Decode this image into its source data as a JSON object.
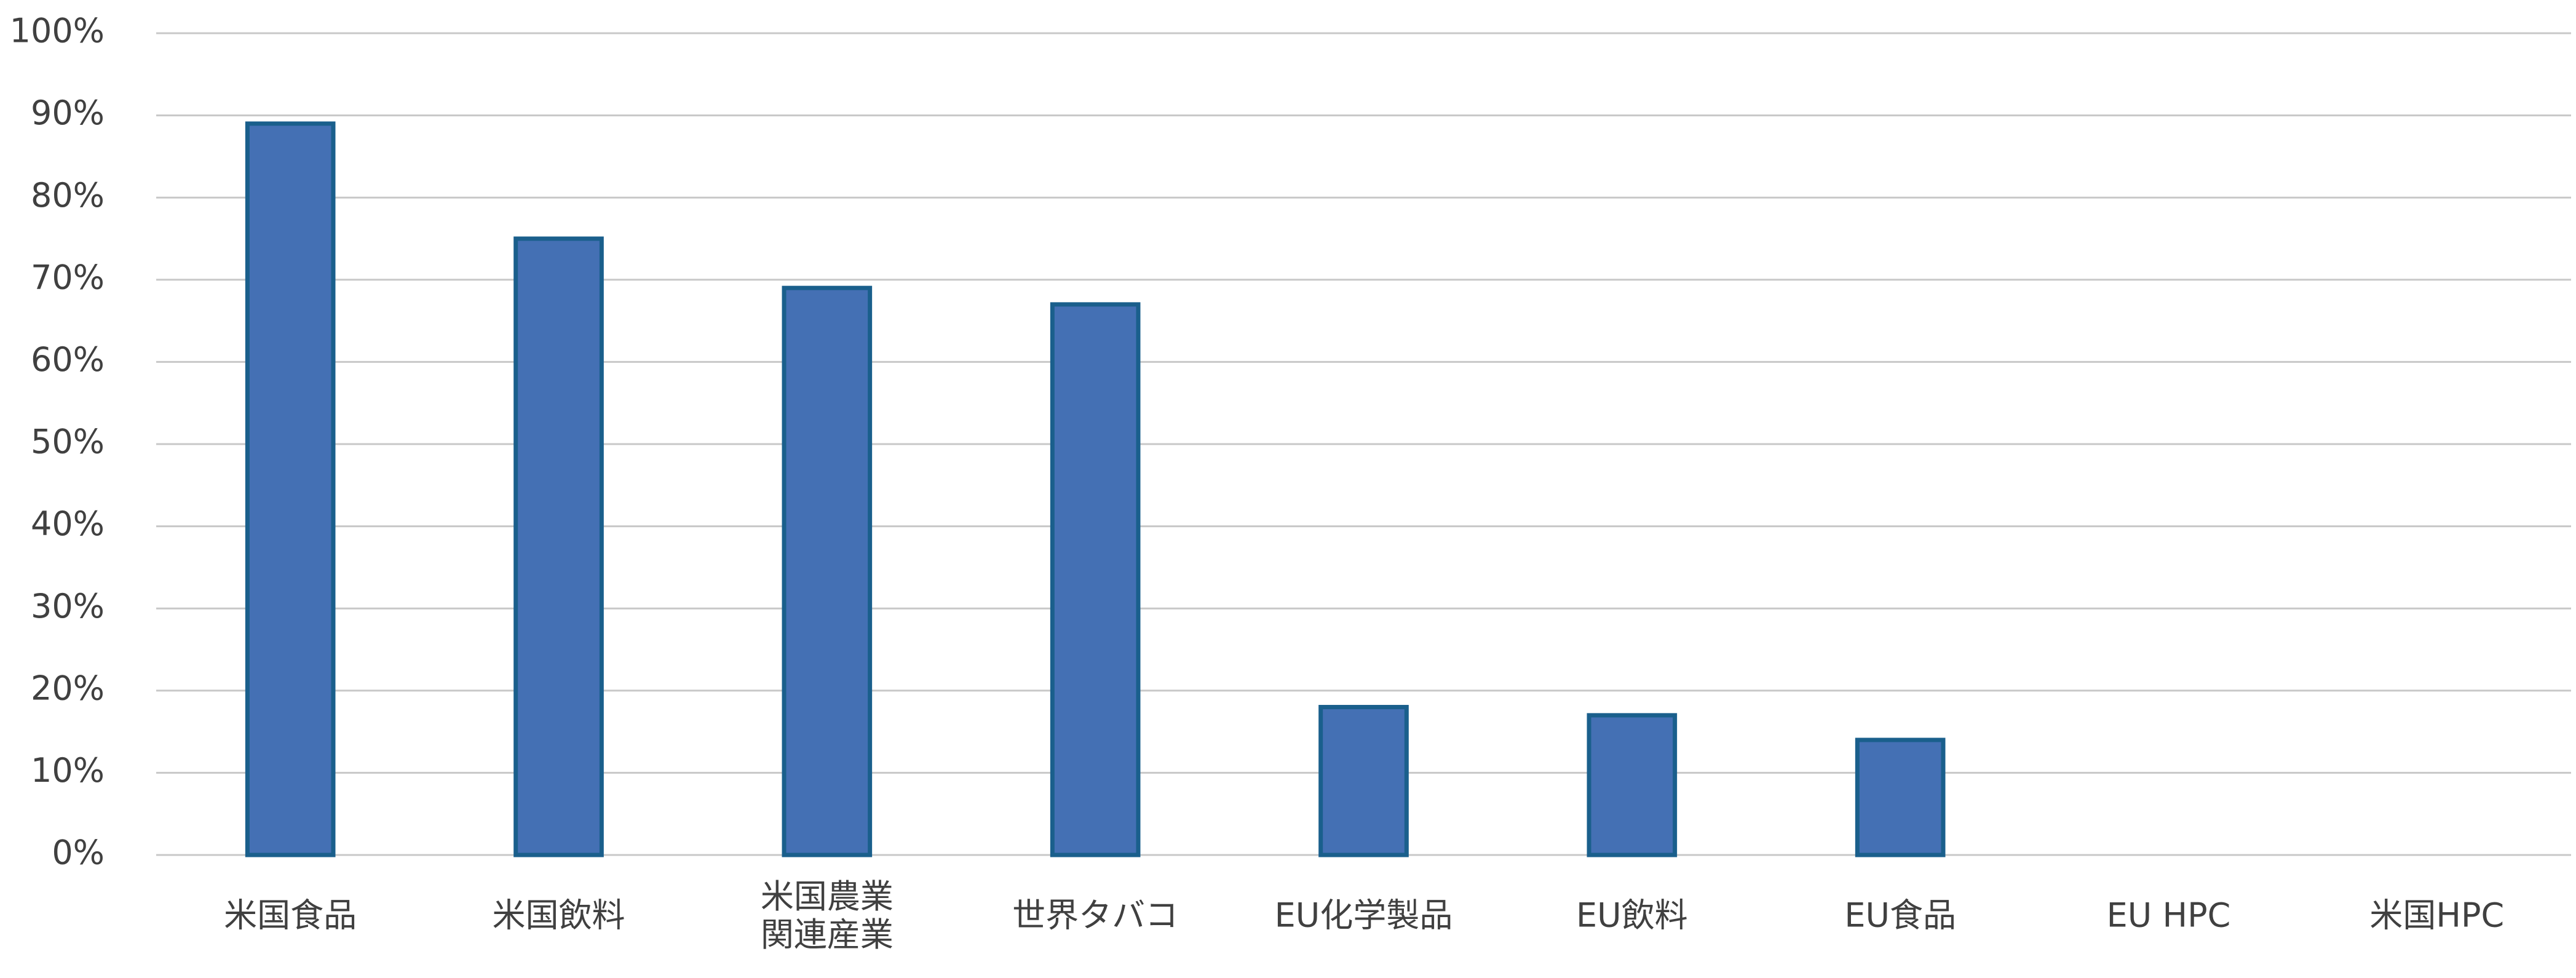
{
  "chart_data": {
    "type": "bar",
    "categories": [
      "米国食品",
      "米国飲料",
      "米国農業\n関連産業",
      "世界タバコ",
      "EU化学製品",
      "EU飲料",
      "EU食品",
      "EU HPC",
      "米国HPC"
    ],
    "values": [
      89,
      75,
      69,
      67,
      18,
      17,
      14,
      0,
      0
    ],
    "color": "#4470b4",
    "edge_color": "#1a5f8c",
    "ylim": [
      0,
      100
    ],
    "yticks": [
      {
        "value": 0,
        "label": "0%"
      },
      {
        "value": 10,
        "label": "10%"
      },
      {
        "value": 20,
        "label": "20%"
      },
      {
        "value": 30,
        "label": "30%"
      },
      {
        "value": 40,
        "label": "40%"
      },
      {
        "value": 50,
        "label": "50%"
      },
      {
        "value": 60,
        "label": "60%"
      },
      {
        "value": 70,
        "label": "70%"
      },
      {
        "value": 80,
        "label": "80%"
      },
      {
        "value": 90,
        "label": "90%"
      },
      {
        "value": 100,
        "label": "100%"
      }
    ],
    "grid": true
  }
}
